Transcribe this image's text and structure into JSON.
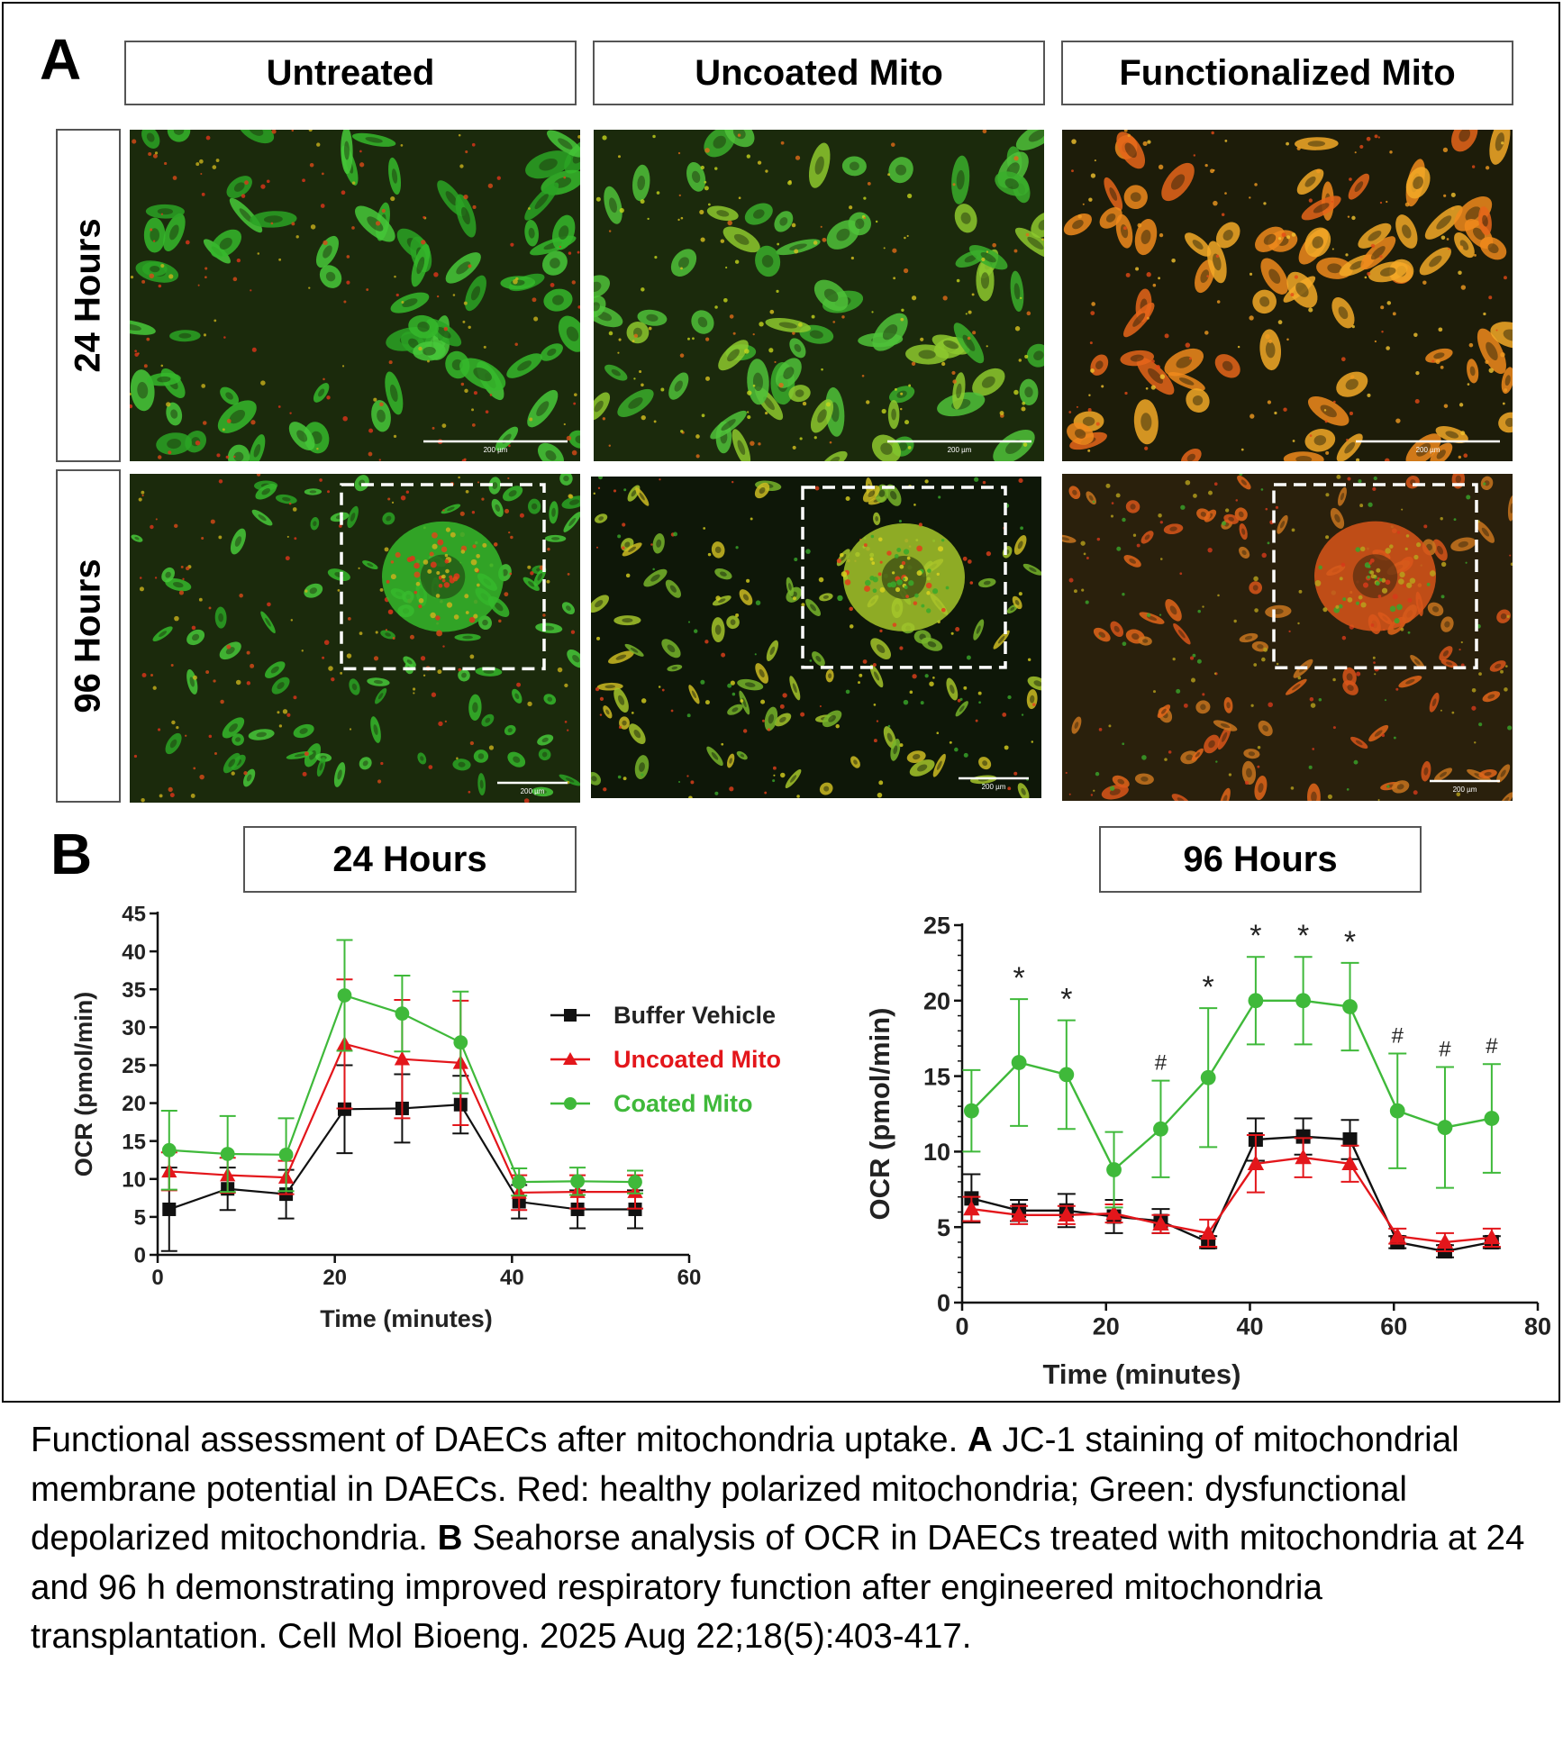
{
  "panel_a": {
    "letter": "A",
    "column_headers": [
      "Untreated",
      "Uncoated Mito",
      "Functionalized Mito"
    ],
    "row_headers": [
      "24 Hours",
      "96 Hours"
    ],
    "scale_bar_label": "200 µm",
    "images": [
      {
        "name": "micrograph-24h-untreated",
        "row": 0,
        "col": 0,
        "dominant": "green",
        "inset": false
      },
      {
        "name": "micrograph-24h-uncoated-mito",
        "row": 0,
        "col": 1,
        "dominant": "green-yellow",
        "inset": false
      },
      {
        "name": "micrograph-24h-functionalized-mito",
        "row": 0,
        "col": 2,
        "dominant": "orange",
        "inset": false
      },
      {
        "name": "micrograph-96h-untreated",
        "row": 1,
        "col": 0,
        "dominant": "green",
        "inset": true
      },
      {
        "name": "micrograph-96h-uncoated-mito",
        "row": 1,
        "col": 1,
        "dominant": "yellow",
        "inset": true
      },
      {
        "name": "micrograph-96h-functionalized-mito",
        "row": 1,
        "col": 2,
        "dominant": "orange-red",
        "inset": true
      }
    ]
  },
  "panel_b": {
    "letter": "B",
    "headers": [
      "24 Hours",
      "96 Hours"
    ]
  },
  "colors": {
    "black": "#111111",
    "red": "#e3161b",
    "green": "#3fb93a"
  },
  "chart_data": [
    {
      "type": "line",
      "title": "24 Hours",
      "xlabel": "Time (minutes)",
      "ylabel": "OCR (pmol/min)",
      "xlim": [
        0,
        60
      ],
      "ylim": [
        0,
        45
      ],
      "xticks": [
        0,
        20,
        40,
        60
      ],
      "yticks": [
        0,
        5,
        10,
        15,
        20,
        25,
        30,
        35,
        40,
        45
      ],
      "legend": "right",
      "x": [
        1.3,
        7.9,
        14.5,
        21.1,
        27.6,
        34.2,
        40.8,
        47.4,
        53.9
      ],
      "series": [
        {
          "name": "Buffer Vehicle",
          "color": "#111111",
          "marker": "square",
          "values": [
            6,
            8.7,
            8,
            19.2,
            19.3,
            19.8,
            7,
            6,
            6
          ],
          "errors": [
            5.5,
            2.8,
            3.2,
            5.8,
            4.5,
            3.8,
            2.2,
            2.5,
            2.5
          ]
        },
        {
          "name": "Uncoated Mito",
          "color": "#e3161b",
          "marker": "triangle",
          "values": [
            11,
            10.5,
            10.2,
            27.8,
            25.8,
            25.3,
            8.2,
            8.3,
            8.3
          ],
          "errors": [
            2.5,
            2.3,
            2.2,
            8.5,
            7.8,
            8.2,
            2.3,
            2.2,
            2.2
          ]
        },
        {
          "name": "Coated Mito",
          "color": "#3fb93a",
          "marker": "circle",
          "values": [
            13.8,
            13.3,
            13.2,
            34.2,
            31.8,
            28,
            9.6,
            9.7,
            9.6
          ],
          "errors": [
            5.2,
            5,
            4.8,
            7.3,
            5,
            6.7,
            1.8,
            1.8,
            1.5
          ]
        }
      ]
    },
    {
      "type": "line",
      "title": "96 Hours",
      "xlabel": "Time (minutes)",
      "ylabel": "OCR (pmol/min)",
      "xlim": [
        0,
        80
      ],
      "ylim": [
        0,
        25
      ],
      "xticks": [
        0,
        20,
        40,
        60,
        80
      ],
      "yticks": [
        0,
        5,
        10,
        15,
        20,
        25
      ],
      "x": [
        1.3,
        7.9,
        14.5,
        21.1,
        27.6,
        34.2,
        40.8,
        47.4,
        53.9,
        60.5,
        67.1,
        73.6
      ],
      "series": [
        {
          "name": "Buffer Vehicle",
          "color": "#111111",
          "marker": "square",
          "values": [
            6.9,
            6.1,
            6.1,
            5.7,
            5.4,
            4,
            10.8,
            11,
            10.8,
            4,
            3.4,
            4
          ],
          "errors": [
            1.6,
            0.7,
            1.1,
            1.1,
            0.8,
            0.4,
            1.4,
            1.2,
            1.3,
            0.4,
            0.4,
            0.4
          ]
        },
        {
          "name": "Uncoated Mito",
          "color": "#e3161b",
          "marker": "triangle",
          "values": [
            6.2,
            5.8,
            5.8,
            5.9,
            5.2,
            4.6,
            9.2,
            9.6,
            9.2,
            4.4,
            4,
            4.3
          ],
          "errors": [
            0.8,
            0.6,
            0.6,
            0.6,
            0.6,
            0.9,
            1.9,
            1.3,
            1.2,
            0.5,
            0.6,
            0.6
          ]
        },
        {
          "name": "Coated Mito",
          "color": "#3fb93a",
          "marker": "circle",
          "values": [
            12.7,
            15.9,
            15.1,
            8.8,
            11.5,
            14.9,
            20,
            20,
            19.6,
            12.7,
            11.6,
            12.2
          ],
          "errors": [
            2.7,
            4.2,
            3.6,
            2.5,
            3.2,
            4.6,
            2.9,
            2.9,
            2.9,
            3.8,
            4,
            3.6
          ]
        }
      ],
      "annotations": [
        {
          "text": "*",
          "x": 7.9
        },
        {
          "text": "*",
          "x": 14.5
        },
        {
          "text": "*",
          "x": 34.2
        },
        {
          "text": "*",
          "x": 40.8
        },
        {
          "text": "*",
          "x": 47.4
        },
        {
          "text": "*",
          "x": 53.9
        },
        {
          "text": "#",
          "x": 27.6
        },
        {
          "text": "#",
          "x": 60.5
        },
        {
          "text": "#",
          "x": 67.1
        },
        {
          "text": "#",
          "x": 73.6
        }
      ]
    }
  ],
  "caption": {
    "lead": "Functional assessment of DAECs after mitochondria uptake. ",
    "a_label": "A",
    "a_text": " JC-1 staining of mitochondrial membrane potential in DAECs. Red: healthy polarized mitochondria; Green: dysfunctional depolarized mitochondria. ",
    "b_label": "B",
    "b_text": " Seahorse analysis of OCR in DAECs treated with mitochondria at 24 and 96 h demonstrating improved respiratory function after engineered mitochondria transplantation. Cell Mol Bioeng. 2025 Aug 22;18(5):403-417."
  }
}
